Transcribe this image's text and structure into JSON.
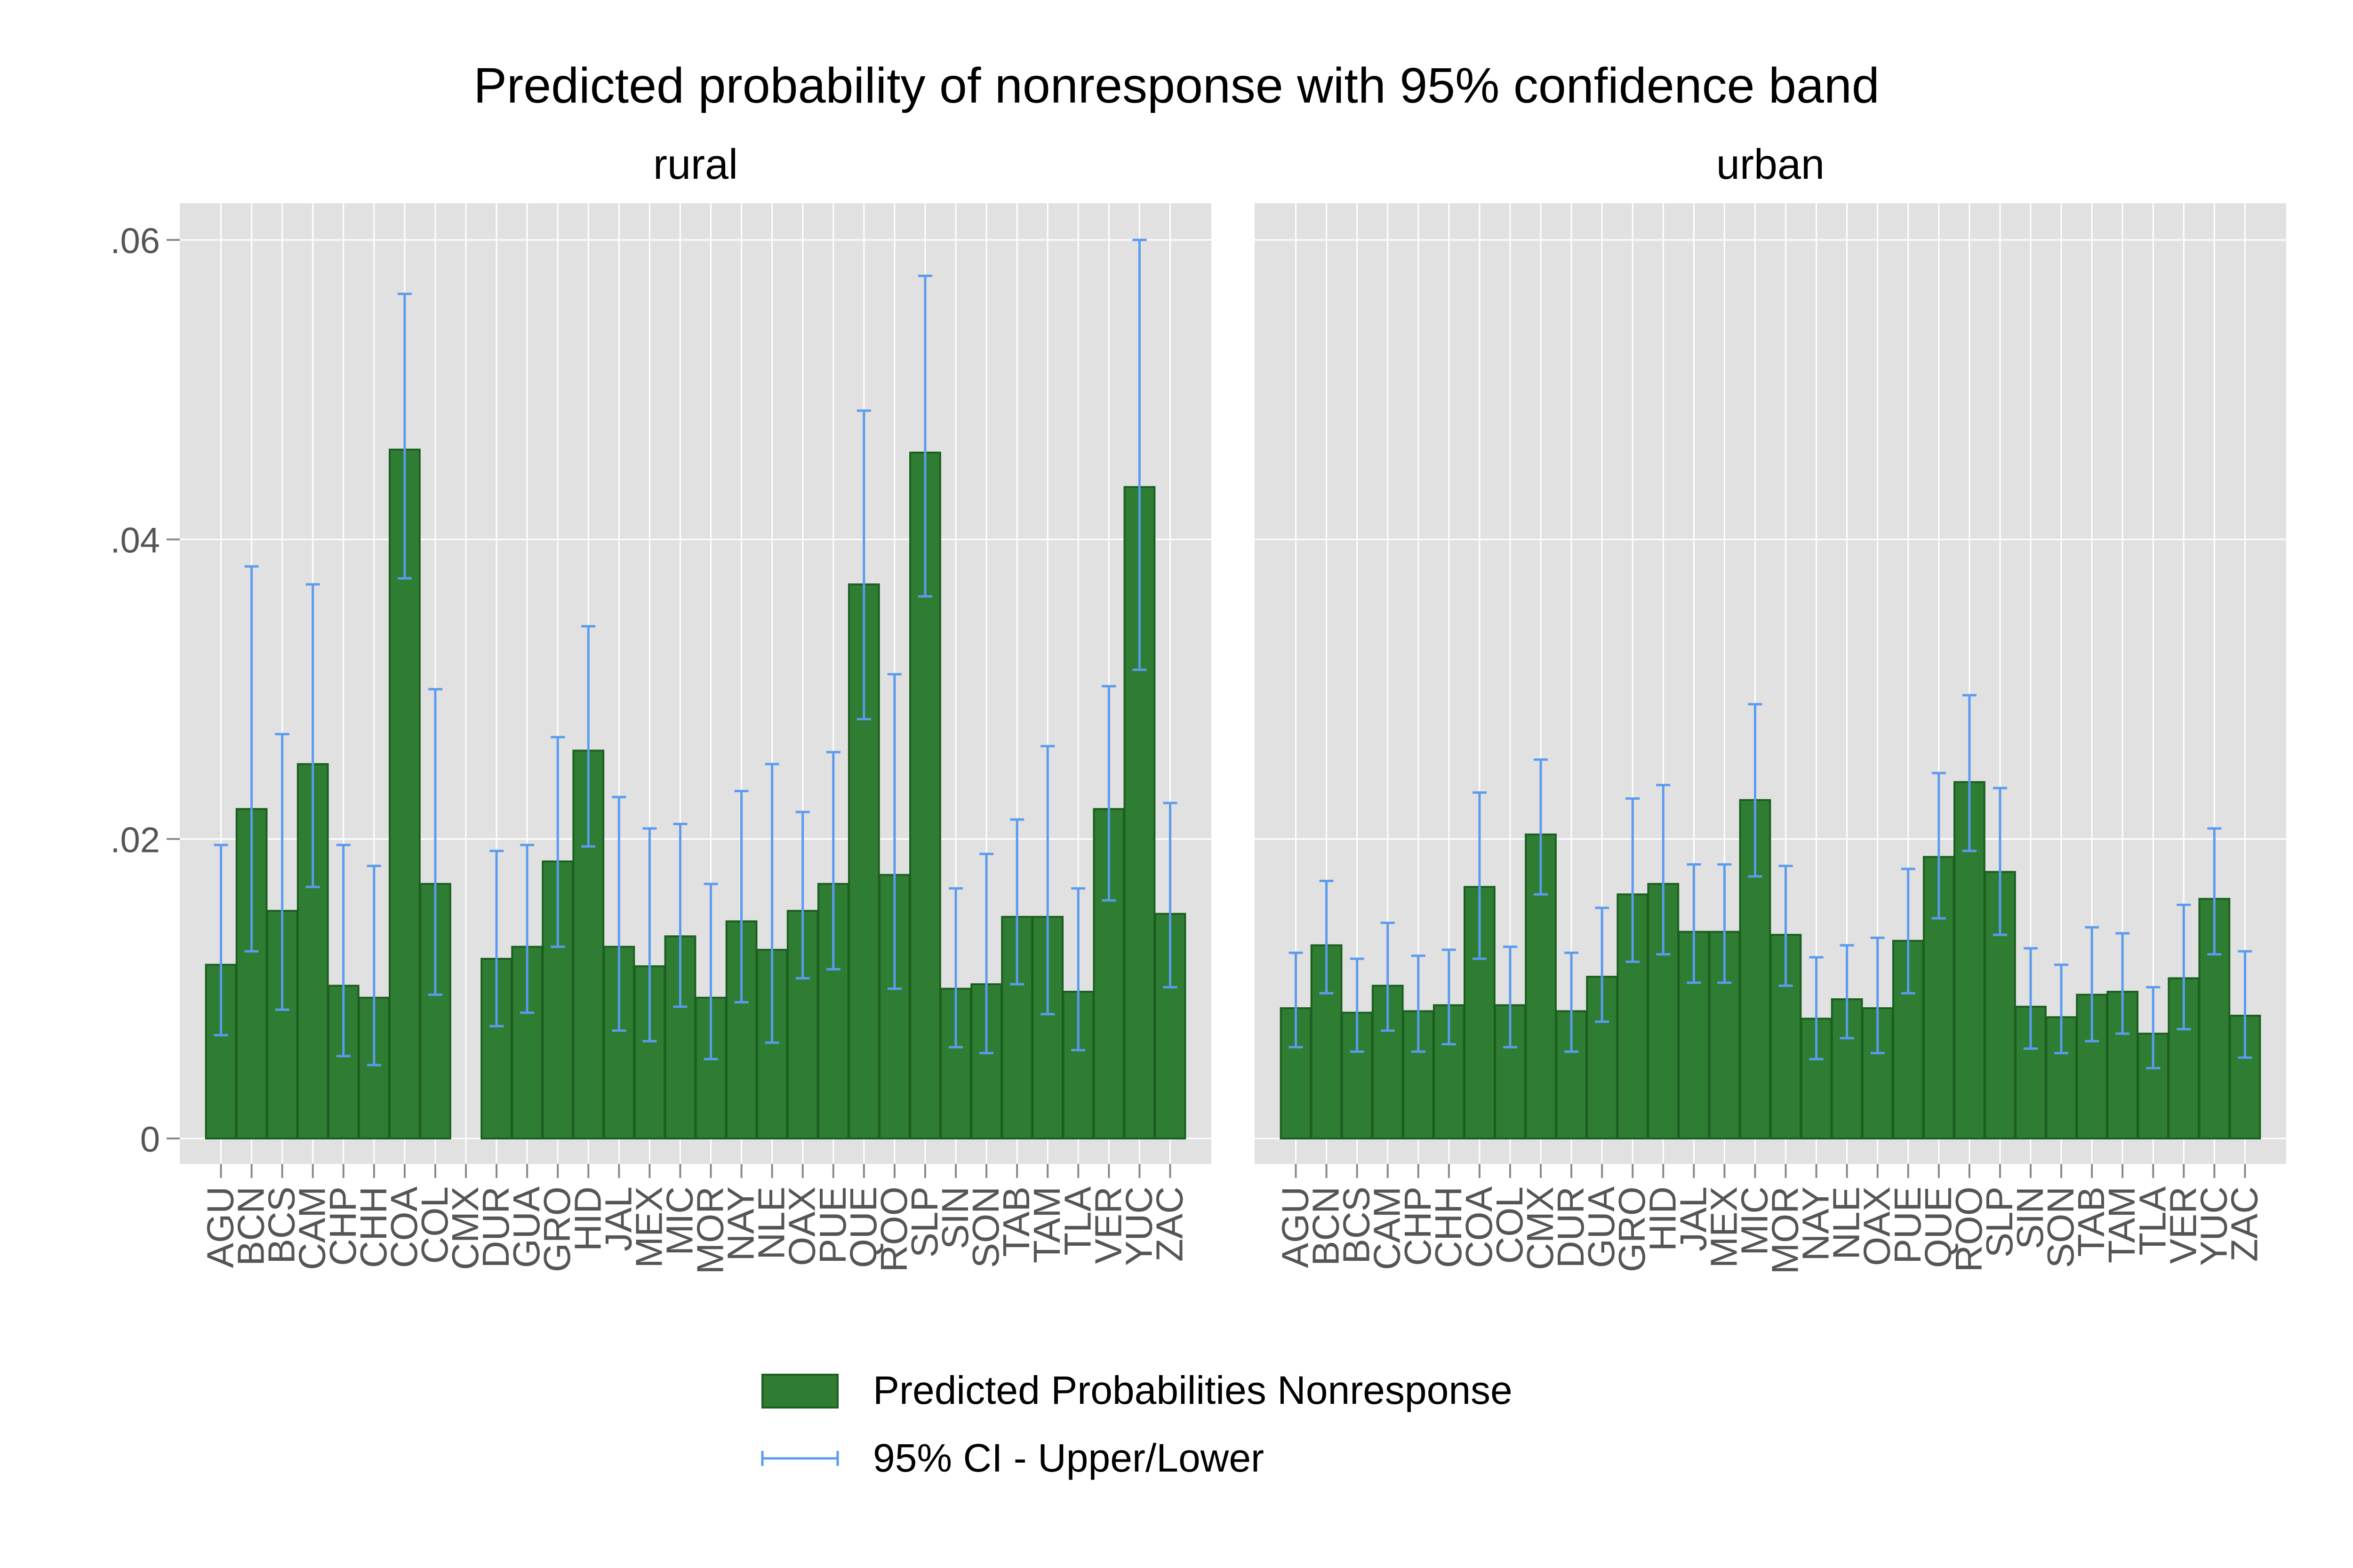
{
  "chart_data": {
    "type": "bar",
    "title": "Predicted probability of nonresponse with 95% confidence band",
    "ylim": [
      0,
      0.06
    ],
    "yticks": [
      {
        "value": 0,
        "label": "0"
      },
      {
        "value": 0.02,
        "label": ".02"
      },
      {
        "value": 0.04,
        "label": ".04"
      },
      {
        "value": 0.06,
        "label": ".06"
      }
    ],
    "categories": [
      "AGU",
      "BCN",
      "BCS",
      "CAM",
      "CHP",
      "CHH",
      "COA",
      "COL",
      "CMX",
      "DUR",
      "GUA",
      "GRO",
      "HID",
      "JAL",
      "MEX",
      "MIC",
      "MOR",
      "NAY",
      "NLE",
      "OAX",
      "PUE",
      "QUE",
      "ROO",
      "SLP",
      "SIN",
      "SON",
      "TAB",
      "TAM",
      "TLA",
      "VER",
      "YUC",
      "ZAC"
    ],
    "grid": true,
    "legend_position": "bottom",
    "colors": {
      "bar": "#2e7d32",
      "bar_edge": "#1b5e20",
      "ci": "#5b9bef",
      "panel_bg": "#e1e1e1",
      "grid": "#ffffff",
      "strip_bg": "#ffffff"
    },
    "panels": [
      {
        "name": "rural",
        "values": [
          0.0116,
          0.022,
          0.0152,
          0.025,
          0.0102,
          0.0094,
          0.046,
          0.017,
          null,
          0.012,
          0.0128,
          0.0185,
          0.0259,
          0.0128,
          0.0115,
          0.0135,
          0.0094,
          0.0145,
          0.0126,
          0.0152,
          0.017,
          0.037,
          0.0176,
          0.0458,
          0.01,
          0.0103,
          0.0148,
          0.0148,
          0.0098,
          0.022,
          0.0435,
          0.015
        ],
        "lower": [
          0.0069,
          0.0125,
          0.0086,
          0.0168,
          0.0055,
          0.0049,
          0.0374,
          0.0096,
          null,
          0.0075,
          0.0084,
          0.0128,
          0.0195,
          0.0072,
          0.0065,
          0.0088,
          0.0053,
          0.0091,
          0.0064,
          0.0107,
          0.0113,
          0.028,
          0.01,
          0.0362,
          0.0061,
          0.0057,
          0.0103,
          0.0083,
          0.0059,
          0.0159,
          0.0313,
          0.0101
        ],
        "upper": [
          0.0196,
          0.0382,
          0.027,
          0.037,
          0.0196,
          0.0182,
          0.0564,
          0.03,
          null,
          0.0192,
          0.0196,
          0.0268,
          0.0342,
          0.0228,
          0.0207,
          0.021,
          0.017,
          0.0232,
          0.025,
          0.0218,
          0.0258,
          0.0486,
          0.031,
          0.0576,
          0.0167,
          0.019,
          0.0213,
          0.0262,
          0.0167,
          0.0302,
          0.06,
          0.0224
        ]
      },
      {
        "name": "urban",
        "values": [
          0.0087,
          0.0129,
          0.0084,
          0.0102,
          0.0085,
          0.0089,
          0.0168,
          0.0089,
          0.0203,
          0.0085,
          0.0108,
          0.0163,
          0.017,
          0.0138,
          0.0138,
          0.0226,
          0.0136,
          0.008,
          0.0093,
          0.0087,
          0.0132,
          0.0188,
          0.0238,
          0.0178,
          0.0088,
          0.0081,
          0.0096,
          0.0098,
          0.007,
          0.0107,
          0.016,
          0.0082
        ],
        "lower": [
          0.0061,
          0.0097,
          0.0058,
          0.0072,
          0.0058,
          0.0063,
          0.012,
          0.0061,
          0.0163,
          0.0058,
          0.0078,
          0.0118,
          0.0123,
          0.0104,
          0.0104,
          0.0175,
          0.0102,
          0.0053,
          0.0067,
          0.0057,
          0.0097,
          0.0147,
          0.0192,
          0.0136,
          0.006,
          0.0057,
          0.0065,
          0.007,
          0.0047,
          0.0073,
          0.0123,
          0.0054
        ],
        "upper": [
          0.0124,
          0.0172,
          0.012,
          0.0144,
          0.0122,
          0.0126,
          0.0231,
          0.0128,
          0.0253,
          0.0124,
          0.0154,
          0.0227,
          0.0236,
          0.0183,
          0.0183,
          0.029,
          0.0182,
          0.0121,
          0.0129,
          0.0134,
          0.018,
          0.0244,
          0.0296,
          0.0234,
          0.0127,
          0.0116,
          0.0141,
          0.0137,
          0.0101,
          0.0156,
          0.0207,
          0.0125
        ]
      }
    ],
    "legend": [
      {
        "label": "Predicted Probabilities Nonresponse",
        "kind": "bar"
      },
      {
        "label": "95% CI - Upper/Lower",
        "kind": "errorbar"
      }
    ]
  }
}
